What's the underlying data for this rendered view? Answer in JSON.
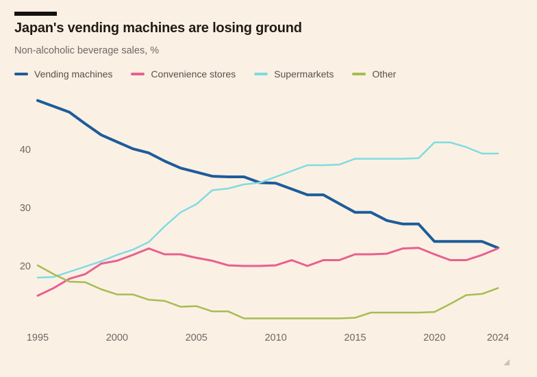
{
  "chart_data": {
    "type": "line",
    "title": "Japan's vending machines are losing ground",
    "subtitle": "Non-alcoholic beverage sales, %",
    "x": [
      1995,
      1996,
      1997,
      1998,
      1999,
      2000,
      2001,
      2002,
      2003,
      2004,
      2005,
      2006,
      2007,
      2008,
      2009,
      2010,
      2011,
      2012,
      2013,
      2014,
      2015,
      2016,
      2017,
      2018,
      2019,
      2020,
      2021,
      2022,
      2023,
      2024
    ],
    "series": [
      {
        "name": "Vending machines",
        "color": "#1D5C99",
        "stroke_width": 4,
        "values": [
          48.4,
          47.4,
          46.4,
          44.4,
          42.5,
          41.3,
          40.1,
          39.4,
          38.0,
          36.8,
          36.1,
          35.4,
          35.3,
          35.3,
          34.3,
          34.2,
          33.2,
          32.2,
          32.2,
          30.7,
          29.2,
          29.2,
          27.8,
          27.2,
          27.2,
          24.2,
          24.2,
          24.2,
          24.2,
          23.1
        ]
      },
      {
        "name": "Convenience stores",
        "color": "#E8608E",
        "stroke_width": 3,
        "values": [
          14.9,
          16.2,
          17.8,
          18.6,
          20.4,
          20.9,
          21.9,
          23.0,
          22.0,
          22.0,
          21.4,
          20.9,
          20.1,
          20.0,
          20.0,
          20.1,
          21.0,
          20.0,
          21.0,
          21.0,
          22.0,
          22.0,
          22.1,
          23.0,
          23.1,
          22.0,
          21.0,
          21.0,
          21.9,
          23.0
        ]
      },
      {
        "name": "Supermarkets",
        "color": "#7FDCE2",
        "stroke_width": 2.5,
        "values": [
          18.0,
          18.1,
          19.0,
          19.9,
          20.8,
          21.9,
          22.8,
          24.1,
          26.8,
          29.2,
          30.6,
          33.0,
          33.3,
          34.0,
          34.3,
          35.3,
          36.3,
          37.3,
          37.3,
          37.4,
          38.4,
          38.4,
          38.4,
          38.4,
          38.5,
          41.2,
          41.2,
          40.4,
          39.3,
          39.3
        ]
      },
      {
        "name": "Other",
        "color": "#A5BD51",
        "stroke_width": 2.5,
        "values": [
          20.1,
          18.6,
          17.3,
          17.2,
          16.0,
          15.1,
          15.1,
          14.2,
          14.0,
          13.0,
          13.1,
          12.2,
          12.2,
          11.0,
          11.0,
          11.0,
          11.0,
          11.0,
          11.0,
          11.0,
          11.1,
          12.0,
          12.0,
          12.0,
          12.0,
          12.1,
          13.5,
          15.0,
          15.2,
          16.2
        ]
      }
    ],
    "xticks": [
      1995,
      2000,
      2005,
      2010,
      2015,
      2020,
      2024
    ],
    "yticks": [
      20,
      30,
      40
    ],
    "xlabel": "",
    "ylabel": "",
    "ylim": [
      9,
      50
    ],
    "xlim": [
      1995,
      2024
    ],
    "grid": false,
    "legend_position": "top"
  },
  "colors": {
    "background": "#FBF0E4",
    "accent_bar": "#14110F",
    "title_text": "#211B16",
    "subtitle_text": "#6F6762",
    "axis_text": "#6F6762",
    "legend_text": "#57504B",
    "resize_grip": "#C9C3BB"
  }
}
